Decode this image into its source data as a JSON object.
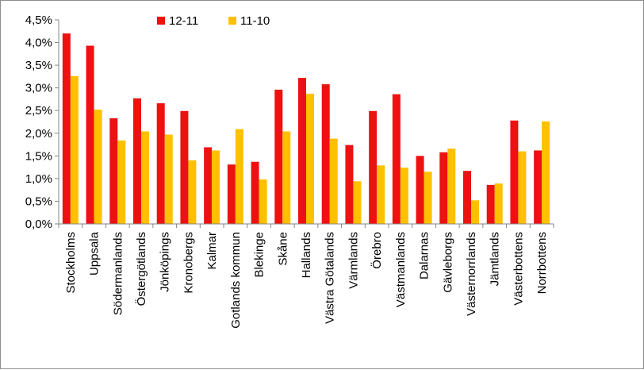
{
  "chart_data": {
    "type": "bar",
    "title": "",
    "xlabel": "",
    "ylabel": "",
    "ylim": [
      0,
      4.5
    ],
    "yticks": [
      "0,0%",
      "0,5%",
      "1,0%",
      "1,5%",
      "2,0%",
      "2,5%",
      "3,0%",
      "3,5%",
      "4,0%",
      "4,5%"
    ],
    "grid": false,
    "legend_position": "top-center",
    "categories": [
      "Stockholms",
      "Uppsala",
      "Södermanlands",
      "Östergötlands",
      "Jönköpings",
      "Kronobergs",
      "Kalmar",
      "Gotlands kommun",
      "Blekinge",
      "Skåne",
      "Hallands",
      "Västra Götalands",
      "Värmlands",
      "Örebro",
      "Västmanlands",
      "Dalarnas",
      "Gävleborgs",
      "Västernorrlands",
      "Jämtlands",
      "Västerbottens",
      "Norrbottens"
    ],
    "series": [
      {
        "name": "12-11",
        "color": "#ee1111",
        "values": [
          4.2,
          3.93,
          2.33,
          2.77,
          2.66,
          2.49,
          1.69,
          1.31,
          1.37,
          2.96,
          3.22,
          3.08,
          1.74,
          2.49,
          2.86,
          1.5,
          1.58,
          1.17,
          0.86,
          2.28,
          1.62
        ]
      },
      {
        "name": "11-10",
        "color": "#ffc000",
        "values": [
          3.26,
          2.52,
          1.84,
          2.04,
          1.97,
          1.4,
          1.62,
          2.09,
          0.98,
          2.04,
          2.87,
          1.88,
          0.94,
          1.29,
          1.24,
          1.15,
          1.66,
          0.52,
          0.89,
          1.6,
          2.26
        ]
      }
    ]
  }
}
